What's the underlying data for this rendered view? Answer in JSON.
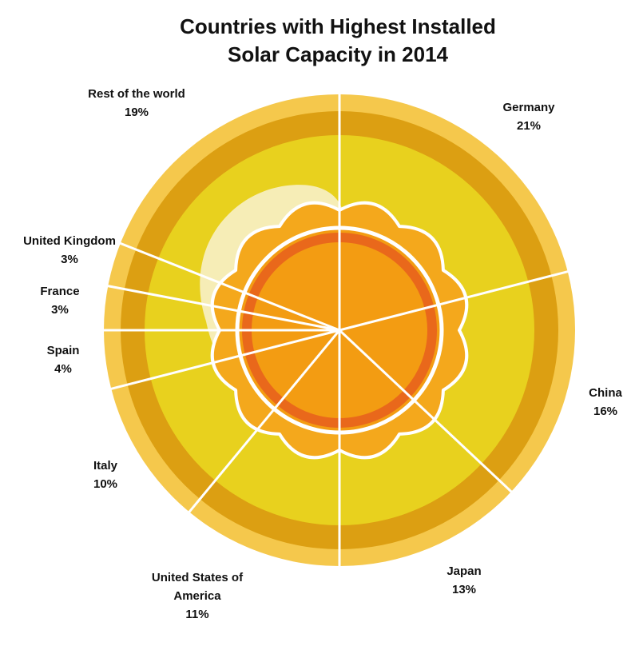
{
  "chart_data": {
    "type": "pie",
    "title_line1": "Countries with Highest Installed",
    "title_line2": "Solar Capacity in 2014",
    "unit": "%",
    "slices": [
      {
        "label": "Germany",
        "label_lines": [
          "Germany"
        ],
        "value": 21
      },
      {
        "label": "China",
        "label_lines": [
          "China"
        ],
        "value": 16
      },
      {
        "label": "Japan",
        "label_lines": [
          "Japan"
        ],
        "value": 13
      },
      {
        "label": "United States of America",
        "label_lines": [
          "United States of",
          "America"
        ],
        "value": 11
      },
      {
        "label": "Italy",
        "label_lines": [
          "Italy"
        ],
        "value": 10
      },
      {
        "label": "Spain",
        "label_lines": [
          "Spain"
        ],
        "value": 4
      },
      {
        "label": "France",
        "label_lines": [
          "France"
        ],
        "value": 3
      },
      {
        "label": "United Kingdom",
        "label_lines": [
          "United Kingdom"
        ],
        "value": 3
      },
      {
        "label": "Rest of the world",
        "label_lines": [
          "Rest of the world"
        ],
        "value": 19
      }
    ],
    "start": "top",
    "direction": "clockwise",
    "colors": {
      "outer_ring": "#F5C84C",
      "mid_ring": "#DC9F12",
      "inner_disc": "#E8D11E",
      "sun_rays": "#F4A81C",
      "sun_core": "#F39C12",
      "sun_ring": "#E9681B",
      "highlight": "#F6EDB6",
      "divider": "#FFFFFF"
    }
  }
}
